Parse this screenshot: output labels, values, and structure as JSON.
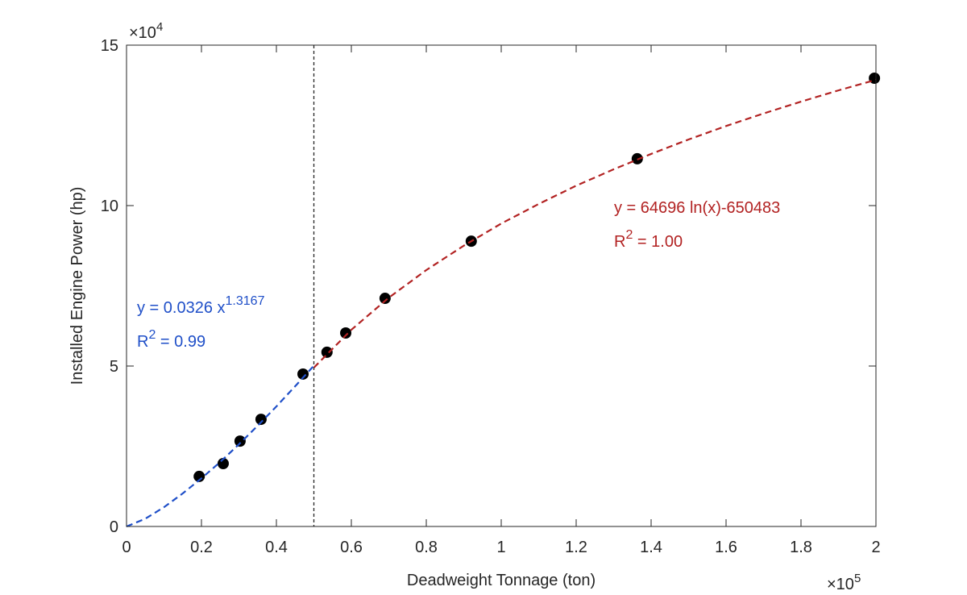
{
  "chart_data": {
    "type": "scatter",
    "xlabel": "Deadweight Tonnage (ton)",
    "ylabel": "Installed Engine Power (hp)",
    "x_exponent": {
      "base": "×10",
      "power": "5"
    },
    "y_exponent": {
      "base": "×10",
      "power": "4"
    },
    "xlim": [
      0,
      200000
    ],
    "ylim": [
      0,
      150000
    ],
    "xticks": [
      0,
      {
        "value": 20000,
        "label": "0.2"
      },
      {
        "value": 40000,
        "label": "0.4"
      },
      {
        "value": 60000,
        "label": "0.6"
      },
      {
        "value": 80000,
        "label": "0.8"
      },
      {
        "value": 100000,
        "label": "1"
      },
      {
        "value": 120000,
        "label": "1.2"
      },
      {
        "value": 140000,
        "label": "1.4"
      },
      {
        "value": 160000,
        "label": "1.6"
      },
      {
        "value": 180000,
        "label": "1.8"
      },
      {
        "value": 200000,
        "label": "2"
      }
    ],
    "yticks": [
      0,
      {
        "value": 50000,
        "label": "5"
      },
      {
        "value": 100000,
        "label": "10"
      },
      {
        "value": 150000,
        "label": "15"
      }
    ],
    "vline": {
      "x": 50000,
      "color": "#262626"
    },
    "series": [
      {
        "style": "markers",
        "color": "#000000",
        "x": [
          19400,
          25800,
          30300,
          35900,
          47100,
          53500,
          58500,
          69000,
          92000,
          136300,
          199600
        ],
        "values": [
          15600,
          19600,
          26600,
          33400,
          47500,
          54300,
          60300,
          71100,
          88900,
          114600,
          139700
        ]
      },
      {
        "style": "dashed",
        "color": "#1f4fc8",
        "x": [
          0,
          5000,
          10000,
          15000,
          20000,
          25000,
          30000,
          35000,
          40000,
          45000,
          50000
        ],
        "values": [
          0,
          2400,
          6000,
          10300,
          15000,
          20100,
          25600,
          31400,
          37400,
          43700,
          50100
        ]
      },
      {
        "style": "dashed",
        "color": "#b22222",
        "x": [
          50000,
          60000,
          70000,
          80000,
          90000,
          100000,
          110000,
          120000,
          130000,
          140000,
          150000,
          160000,
          170000,
          180000,
          190000,
          200000
        ],
        "values": [
          49500,
          61300,
          71300,
          79900,
          87500,
          94400,
          100500,
          106200,
          111300,
          116100,
          120600,
          124800,
          128700,
          132400,
          135900,
          139200
        ]
      }
    ],
    "annotations": [
      {
        "color": "#1f4fc8",
        "lines": [
          [
            {
              "text": "y = 0.0326 x"
            },
            {
              "text": "1.3167",
              "sup": true
            }
          ],
          [
            {
              "text": "R"
            },
            {
              "text": "2",
              "sup": true
            },
            {
              "text": " = 0.99"
            }
          ]
        ]
      },
      {
        "color": "#b22222",
        "lines": [
          [
            {
              "text": "y = 64696 ln(x)-650483"
            }
          ],
          [
            {
              "text": "R"
            },
            {
              "text": "2",
              "sup": true
            },
            {
              "text": " = 1.00"
            }
          ]
        ]
      }
    ]
  }
}
